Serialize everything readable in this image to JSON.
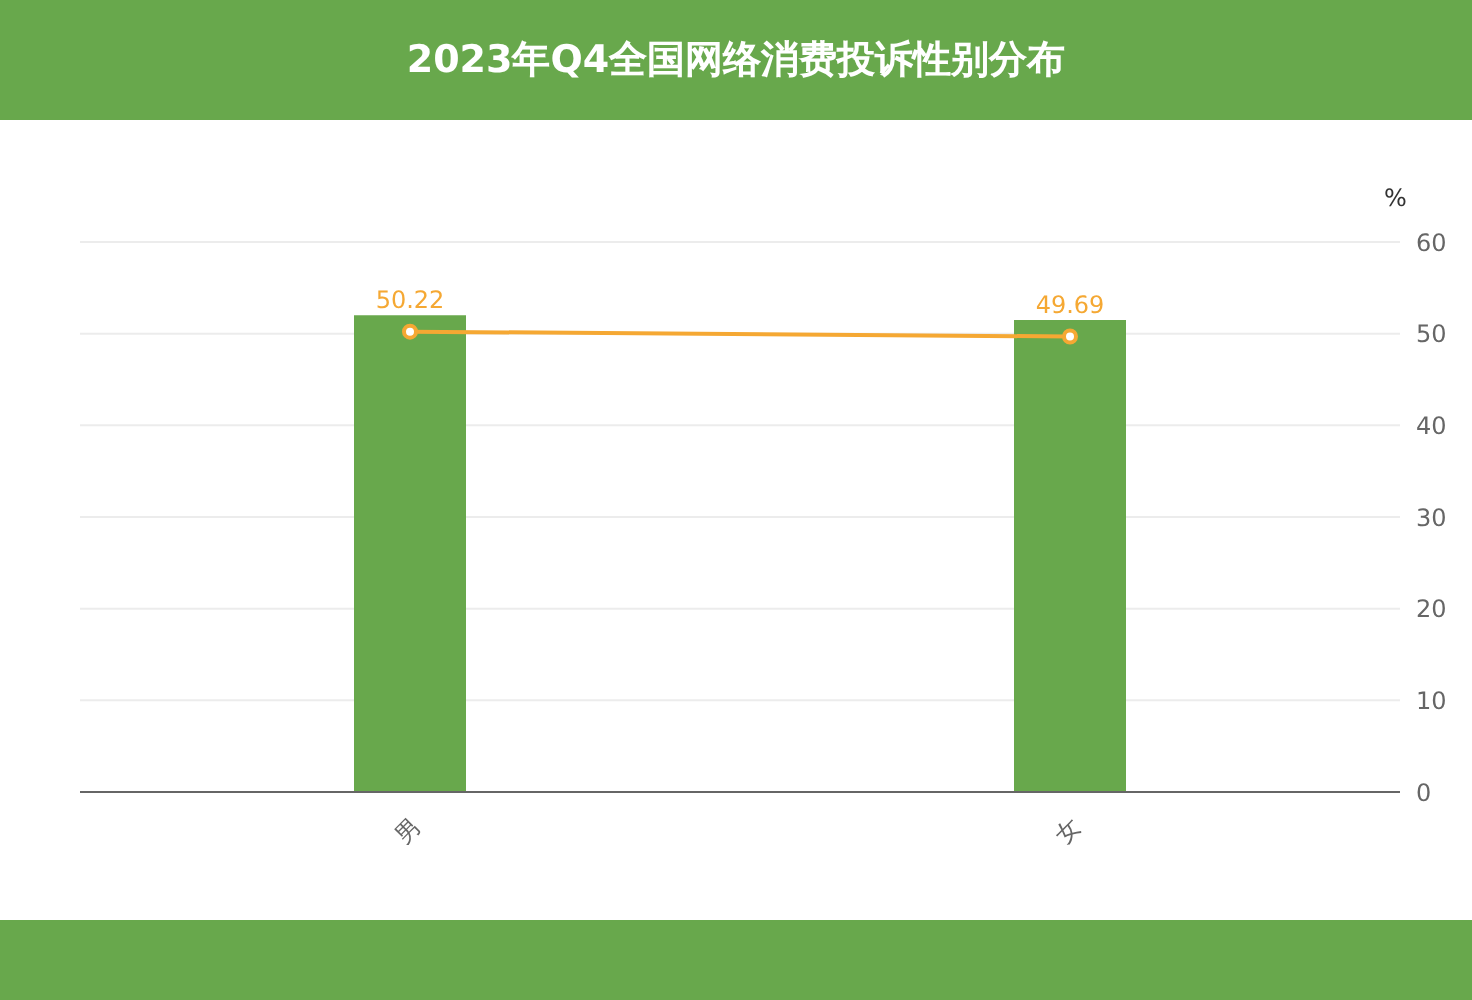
{
  "chart_data": {
    "type": "bar",
    "title": "2023年Q4全国网络消费投诉性别分布",
    "ylabel": "%",
    "categories": [
      "男",
      "女"
    ],
    "series": [
      {
        "color": "#68a84c",
        "values": [
          52.0,
          51.5
        ]
      },
      {
        "type": "line",
        "color": "#f5a833",
        "values": [
          50.22,
          49.69
        ],
        "value_labels": [
          "50.22",
          "49.69"
        ]
      }
    ],
    "ylim": [
      0,
      60
    ],
    "yticks": [
      0,
      10,
      20,
      30,
      40,
      50,
      60
    ],
    "grid": "y",
    "marker": "circle",
    "line_style": "solid"
  }
}
